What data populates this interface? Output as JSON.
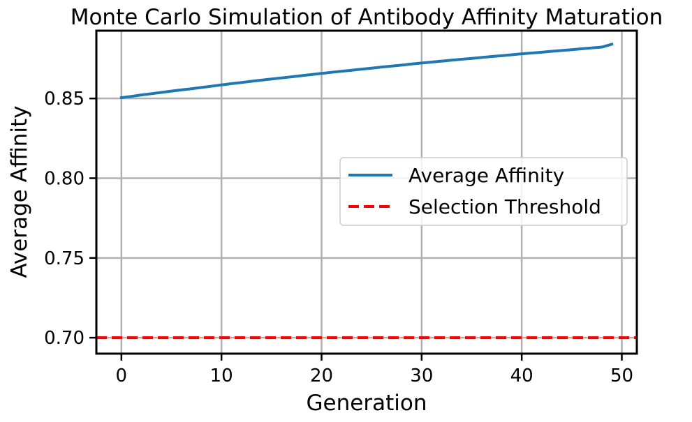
{
  "chart_data": {
    "type": "line",
    "title": "Monte Carlo Simulation of Antibody Affinity Maturation",
    "xlabel": "Generation",
    "ylabel": "Average Affinity",
    "xlim": [
      -2.5,
      51.5
    ],
    "ylim": [
      0.69,
      0.8925
    ],
    "xticks": [
      0,
      10,
      20,
      30,
      40,
      50
    ],
    "yticks": [
      0.7,
      0.75,
      0.8,
      0.85
    ],
    "xtick_labels": [
      "0",
      "10",
      "20",
      "30",
      "40",
      "50"
    ],
    "ytick_labels": [
      "0.70",
      "0.75",
      "0.80",
      "0.85"
    ],
    "grid": true,
    "legend_position": "center-right",
    "series": [
      {
        "name": "Average Affinity",
        "style": "solid",
        "color": "#1f77b4",
        "x": [
          0,
          1,
          2,
          3,
          4,
          5,
          6,
          7,
          8,
          9,
          10,
          11,
          12,
          13,
          14,
          15,
          16,
          17,
          18,
          19,
          20,
          21,
          22,
          23,
          24,
          25,
          26,
          27,
          28,
          29,
          30,
          31,
          32,
          33,
          34,
          35,
          36,
          37,
          38,
          39,
          40,
          41,
          42,
          43,
          44,
          45,
          46,
          47,
          48,
          49
        ],
        "values": [
          0.8505,
          0.8513,
          0.8522,
          0.853,
          0.8538,
          0.8546,
          0.8554,
          0.8561,
          0.8569,
          0.8577,
          0.8585,
          0.8593,
          0.86,
          0.8608,
          0.8615,
          0.8622,
          0.8629,
          0.8636,
          0.8643,
          0.865,
          0.8657,
          0.8664,
          0.8671,
          0.8677,
          0.8684,
          0.869,
          0.8697,
          0.8703,
          0.8709,
          0.8716,
          0.8722,
          0.8728,
          0.8734,
          0.874,
          0.8746,
          0.8751,
          0.8757,
          0.8763,
          0.8768,
          0.8774,
          0.878,
          0.8785,
          0.879,
          0.8796,
          0.8801,
          0.8806,
          0.8812,
          0.8817,
          0.8822,
          0.884
        ]
      },
      {
        "name": "Selection Threshold",
        "style": "dashed",
        "color": "#ff0000",
        "y_constant": 0.7
      }
    ]
  }
}
